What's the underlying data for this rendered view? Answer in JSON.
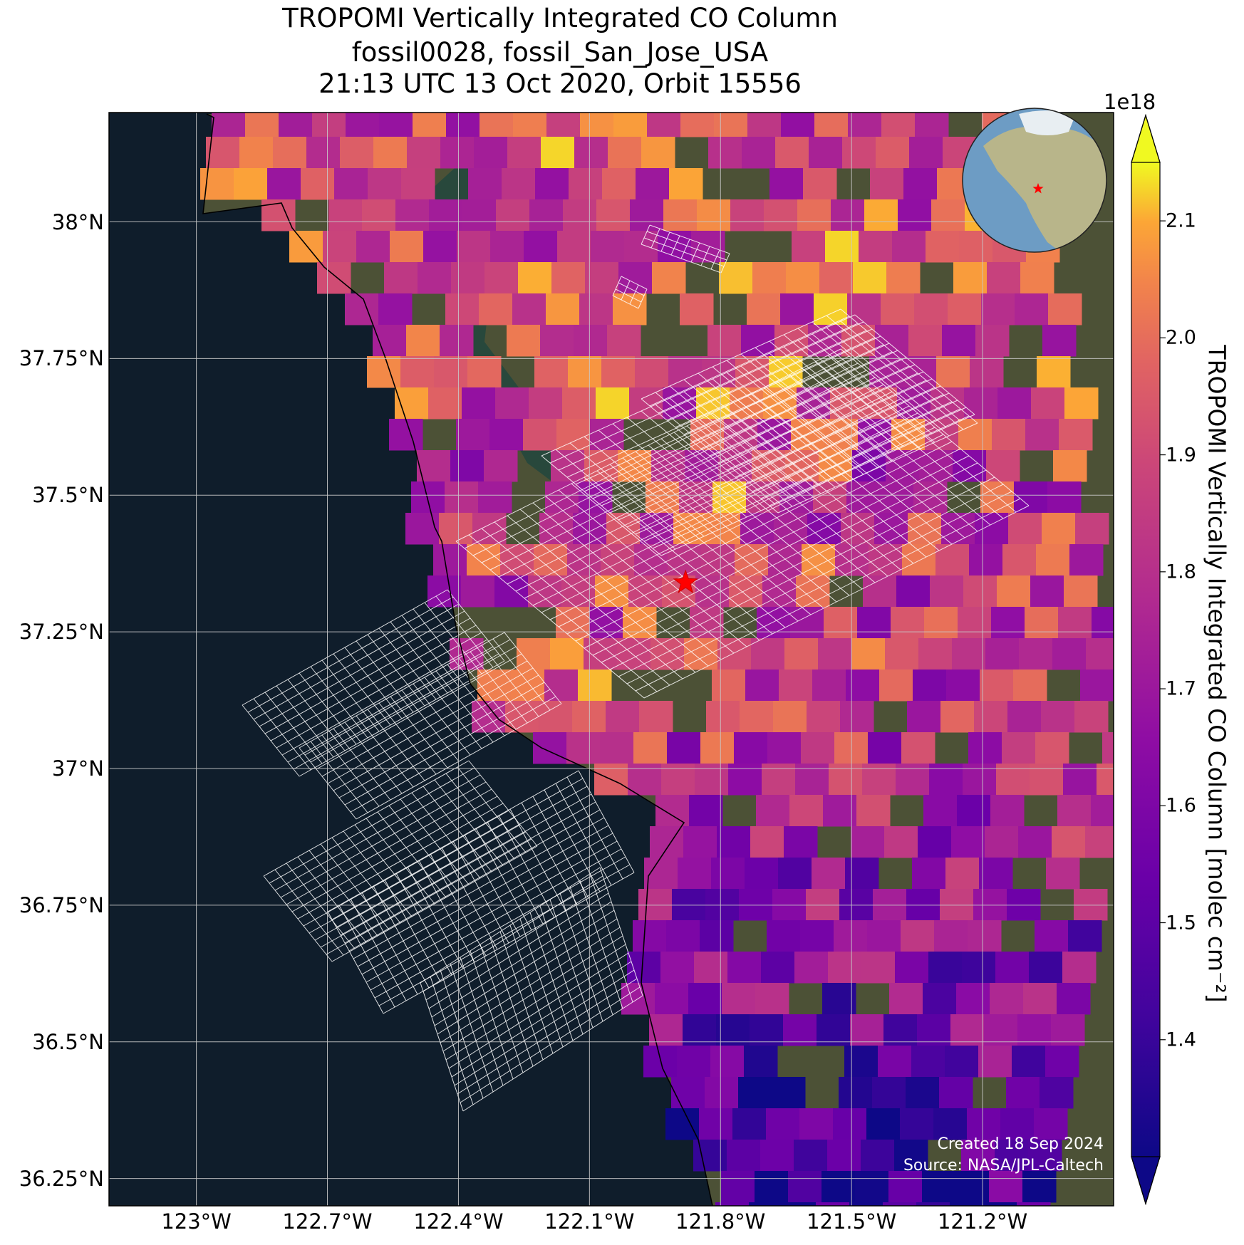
{
  "title": {
    "line1": "TROPOMI Vertically Integrated CO Column",
    "line2": "fossil0028, fossil_San_Jose_USA",
    "line3": "21:13 UTC 13 Oct 2020, Orbit 15556"
  },
  "map": {
    "latitude_ticks": [
      "38°N",
      "37.75°N",
      "37.5°N",
      "37.25°N",
      "37°N",
      "36.75°N",
      "36.5°N",
      "36.25°N"
    ],
    "longitude_ticks": [
      "123°W",
      "122.7°W",
      "122.4°W",
      "122.1°W",
      "121.8°W",
      "121.5°W",
      "121.2°W"
    ],
    "extent": {
      "lon_min": -123.2,
      "lon_max": -120.9,
      "lat_min": 36.2,
      "lat_max": 38.2
    },
    "target_site": {
      "lon": -121.88,
      "lat": 37.34
    },
    "ocean_color": "#0f1d2b",
    "land_color": "#4c5136",
    "grid_color": "#c8c8c8",
    "target_marker_color": "#ff0000",
    "footprint_outline_color": "#ffffff"
  },
  "colorbar": {
    "label": "TROPOMI Vertically Integrated CO Column [molec cm⁻²]",
    "exponent": "1e18",
    "ticks": [
      "1.4",
      "1.5",
      "1.6",
      "1.7",
      "1.8",
      "1.9",
      "2.0",
      "2.1"
    ],
    "tick_values": [
      1.4,
      1.5,
      1.6,
      1.7,
      1.8,
      1.9,
      2.0,
      2.1
    ],
    "vmin": 1.3,
    "vmax": 2.15,
    "colormap": "plasma",
    "extend": "both"
  },
  "credits": {
    "created": "Created 18 Sep 2024",
    "source": "Source: NASA/JPL-Caltech"
  },
  "inset_globe": {
    "ocean_color": "#6d9cc4",
    "land_color": "#b8b58a",
    "marker_color": "#ff0000"
  }
}
